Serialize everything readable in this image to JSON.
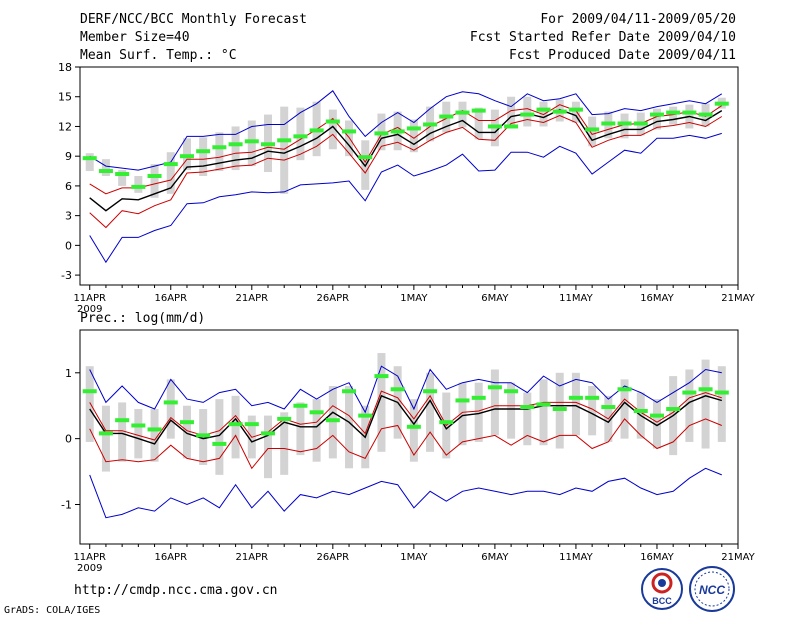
{
  "header": {
    "title": "DERF/NCC/BCC Monthly Forecast",
    "members": "Member Size=40",
    "variable": "Mean Surf. Temp.: °C",
    "period": "For 2009/04/11-2009/05/20",
    "refer": "Fcst Started Refer Date 2009/04/10",
    "produced": "Fcst Produced Date 2009/04/11"
  },
  "second_label": "Prec.: log(mm/d)",
  "footer": {
    "url": "http://cmdp.ncc.cma.gov.cn",
    "credit": "GrADS: COLA/IGES"
  },
  "logos": {
    "bcc": "BCC",
    "ncc": "NCC"
  },
  "colors": {
    "envelope": "#0000cc",
    "spread": "#cc0000",
    "mean": "#000000",
    "obs": "#33ee33",
    "box": "#d3d3d3"
  },
  "chart_data": [
    {
      "type": "line",
      "title": "Mean Surf. Temp.: °C",
      "ylabel": "°C",
      "ylim": [
        -4,
        18
      ],
      "yticks": [
        -3,
        0,
        3,
        6,
        9,
        12,
        15,
        18
      ],
      "x_start": "2009-04-11",
      "x_end": "2009-05-20",
      "xlim": [
        -0.6,
        40
      ],
      "xticks": [
        {
          "day": 0,
          "label": "11APR",
          "year": "2009"
        },
        {
          "day": 5,
          "label": "16APR"
        },
        {
          "day": 10,
          "label": "21APR"
        },
        {
          "day": 15,
          "label": "26APR"
        },
        {
          "day": 20,
          "label": "1MAY"
        },
        {
          "day": 25,
          "label": "6MAY"
        },
        {
          "day": 30,
          "label": "11MAY"
        },
        {
          "day": 35,
          "label": "16MAY"
        },
        {
          "day": 40,
          "label": "21MAY"
        }
      ],
      "series": [
        {
          "name": "max",
          "values": [
            9,
            8,
            7.8,
            7.6,
            8,
            8.4,
            11,
            11,
            11.2,
            11.2,
            12,
            12.2,
            12.2,
            13.4,
            14.3,
            15.6,
            13,
            11,
            12.4,
            13.4,
            12.4,
            13.8,
            15,
            15.5,
            15.3,
            14.6,
            14,
            15.3,
            14.6,
            14.8,
            15.3,
            13.2,
            13.3,
            13.8,
            13.6,
            14,
            14.3,
            14.6,
            14.3,
            15.3
          ]
        },
        {
          "name": "upper",
          "values": [
            6.2,
            5.2,
            5.8,
            5.8,
            6.2,
            6.6,
            8.7,
            8.7,
            8.9,
            9.3,
            9.4,
            9.9,
            9.7,
            10.7,
            11.7,
            12.8,
            10.9,
            8.4,
            11.2,
            11.9,
            10.8,
            12,
            12.8,
            13.6,
            12.6,
            12.6,
            13.6,
            13.8,
            13.2,
            14.2,
            13.6,
            11.2,
            11.7,
            12.2,
            12.3,
            13,
            13.2,
            13.5,
            13,
            14.1
          ]
        },
        {
          "name": "mean",
          "values": [
            4.8,
            3.5,
            4.7,
            4.6,
            5.2,
            5.8,
            7.9,
            8,
            8.3,
            8.6,
            8.8,
            9.5,
            9.3,
            10,
            10.8,
            12,
            10.1,
            8,
            10.8,
            11.2,
            10.2,
            11.3,
            12,
            12.6,
            11.4,
            11.4,
            13,
            13.3,
            12.9,
            13.7,
            13.1,
            10.6,
            11.2,
            11.7,
            11.7,
            12.5,
            12.7,
            13,
            12.6,
            13.6
          ]
        },
        {
          "name": "lower",
          "values": [
            3.3,
            1.8,
            3.5,
            3.2,
            4,
            4.6,
            7.3,
            7.4,
            7.7,
            8,
            8.1,
            8.8,
            8.6,
            9.2,
            10,
            11.2,
            9.3,
            7.3,
            10,
            10.4,
            9.6,
            10.6,
            11.4,
            11.9,
            10.7,
            10.6,
            12.3,
            12.7,
            12.4,
            13.1,
            12.4,
            9.9,
            10.6,
            11.1,
            11.1,
            11.9,
            12.1,
            12.4,
            12,
            13
          ]
        },
        {
          "name": "min",
          "values": [
            1,
            -1.7,
            0.8,
            0.8,
            1.5,
            2,
            4.2,
            4.3,
            4.9,
            5.1,
            5.4,
            5.3,
            5.4,
            6.1,
            6.2,
            6.3,
            6.5,
            4.5,
            7.4,
            8.1,
            7,
            7.5,
            8.1,
            9.2,
            7.5,
            7.6,
            9.4,
            9.4,
            8.9,
            10,
            9.3,
            7.2,
            8.4,
            9.6,
            9.3,
            10.8,
            10.8,
            11.1,
            10.8,
            11.3
          ]
        },
        {
          "name": "observed",
          "values": [
            8.8,
            7.5,
            7.2,
            5.9,
            7,
            8.2,
            9,
            9.5,
            9.9,
            10.2,
            10.5,
            10.2,
            10.6,
            11,
            11.6,
            12.5,
            11.5,
            8.9,
            11.3,
            11.5,
            11.8,
            12.2,
            13,
            13.4,
            13.6,
            12,
            12,
            13.2,
            13.7,
            13.5,
            13.7,
            11.7,
            12.3,
            12.3,
            12.3,
            13.2,
            13.4,
            13.4,
            13.2,
            14.3
          ]
        }
      ],
      "boxes": {
        "low": [
          7.5,
          7,
          6,
          5.3,
          4.8,
          5.2,
          7.6,
          7,
          7.5,
          7.6,
          8,
          7.4,
          5.2,
          8.6,
          9,
          9.7,
          9,
          5.6,
          9.6,
          9.6,
          9.4,
          10.5,
          11.4,
          11.9,
          10.7,
          10,
          11.8,
          12,
          12,
          12.5,
          12.4,
          10,
          10.8,
          10.8,
          11.1,
          11.7,
          12.2,
          11.8,
          12,
          13.8
        ],
        "high": [
          9.3,
          8.7,
          7.6,
          7,
          8.2,
          9.4,
          10.8,
          10.9,
          11.4,
          12,
          12.6,
          13.2,
          14,
          13.9,
          14.5,
          13.7,
          12.6,
          10.6,
          13.3,
          13.5,
          12.7,
          14,
          14.5,
          14.5,
          13.9,
          13.7,
          15,
          15,
          14.5,
          14.7,
          14.5,
          13,
          13.5,
          13.3,
          13.4,
          13.8,
          14,
          14.2,
          14.3,
          14.9
        ]
      }
    },
    {
      "type": "line",
      "title": "Prec.: log(mm/d)",
      "ylabel": "log(mm/d)",
      "ylim": [
        -1.6,
        1.65
      ],
      "yticks": [
        -1,
        0,
        1
      ],
      "x_start": "2009-04-11",
      "x_end": "2009-05-20",
      "xlim": [
        -0.6,
        40
      ],
      "xticks": [
        {
          "day": 0,
          "label": "11APR",
          "year": "2009"
        },
        {
          "day": 5,
          "label": "16APR"
        },
        {
          "day": 10,
          "label": "21APR"
        },
        {
          "day": 15,
          "label": "26APR"
        },
        {
          "day": 20,
          "label": "1MAY"
        },
        {
          "day": 25,
          "label": "6MAY"
        },
        {
          "day": 30,
          "label": "11MAY"
        },
        {
          "day": 35,
          "label": "16MAY"
        },
        {
          "day": 40,
          "label": "21MAY"
        }
      ],
      "series": [
        {
          "name": "max",
          "values": [
            1.05,
            0.55,
            0.8,
            0.55,
            0.45,
            0.9,
            0.6,
            0.55,
            0.7,
            0.75,
            0.5,
            0.55,
            0.45,
            0.75,
            0.6,
            0.75,
            0.85,
            0.4,
            1.1,
            0.95,
            0.45,
            1.05,
            0.75,
            0.85,
            0.9,
            0.85,
            0.85,
            0.7,
            0.95,
            0.8,
            0.9,
            0.85,
            0.6,
            0.8,
            0.7,
            0.55,
            0.7,
            0.85,
            1.05,
            1
          ]
        },
        {
          "name": "upper",
          "values": [
            0.55,
            0.12,
            0.12,
            0.05,
            -0.02,
            0.32,
            0.12,
            0.05,
            0.12,
            0.35,
            0.02,
            0.1,
            0.3,
            0.22,
            0.25,
            0.5,
            0.35,
            0.08,
            0.72,
            0.62,
            0.3,
            0.65,
            0.2,
            0.4,
            0.42,
            0.5,
            0.5,
            0.5,
            0.55,
            0.55,
            0.55,
            0.45,
            0.3,
            0.6,
            0.4,
            0.25,
            0.4,
            0.62,
            0.7,
            0.62
          ]
        },
        {
          "name": "mean",
          "values": [
            0.45,
            0.08,
            0.08,
            0,
            -0.08,
            0.28,
            0.08,
            0,
            0.05,
            0.3,
            -0.05,
            0.05,
            0.25,
            0.18,
            0.18,
            0.4,
            0.25,
            0.02,
            0.65,
            0.55,
            0.22,
            0.58,
            0.15,
            0.35,
            0.38,
            0.45,
            0.45,
            0.45,
            0.5,
            0.5,
            0.5,
            0.38,
            0.25,
            0.55,
            0.35,
            0.2,
            0.35,
            0.55,
            0.65,
            0.58
          ]
        },
        {
          "name": "lower",
          "values": [
            0.15,
            -0.35,
            -0.32,
            -0.35,
            -0.32,
            -0.1,
            -0.3,
            -0.35,
            -0.3,
            0.05,
            -0.45,
            -0.15,
            -0.15,
            -0.2,
            -0.15,
            0.05,
            -0.2,
            -0.3,
            0.15,
            0.2,
            -0.25,
            0.1,
            -0.25,
            -0.05,
            0,
            0.05,
            -0.1,
            0.05,
            -0.05,
            0.05,
            0.05,
            -0.15,
            -0.05,
            0.3,
            0.05,
            -0.15,
            -0.05,
            0.2,
            0.3,
            0.2
          ]
        },
        {
          "name": "min",
          "values": [
            -0.55,
            -1.2,
            -1.15,
            -1.05,
            -1.1,
            -0.9,
            -1,
            -0.9,
            -1.05,
            -0.7,
            -1.05,
            -0.8,
            -1.1,
            -0.85,
            -0.9,
            -0.8,
            -0.85,
            -0.75,
            -0.65,
            -0.7,
            -1.05,
            -0.8,
            -0.95,
            -0.8,
            -0.75,
            -0.8,
            -0.85,
            -0.8,
            -0.8,
            -0.85,
            -0.75,
            -0.8,
            -0.65,
            -0.6,
            -0.75,
            -0.85,
            -0.8,
            -0.6,
            -0.45,
            -0.55
          ]
        },
        {
          "name": "observed",
          "values": [
            0.72,
            0.08,
            0.28,
            0.2,
            0.14,
            0.55,
            0.25,
            0.05,
            -0.08,
            0.22,
            0.22,
            0.08,
            0.3,
            0.5,
            0.4,
            0.28,
            0.72,
            0.35,
            0.95,
            0.75,
            0.18,
            0.72,
            0.25,
            0.58,
            0.62,
            0.78,
            0.72,
            0.48,
            0.52,
            0.45,
            0.62,
            0.62,
            0.48,
            0.75,
            0.42,
            0.35,
            0.45,
            0.7,
            0.75,
            0.7
          ]
        }
      ],
      "boxes": {
        "low": [
          -0.05,
          -0.5,
          -0.35,
          -0.3,
          -0.35,
          0,
          -0.3,
          -0.4,
          -0.55,
          -0.3,
          -0.3,
          -0.6,
          -0.55,
          -0.25,
          -0.35,
          -0.3,
          -0.45,
          -0.45,
          -0.2,
          0,
          -0.35,
          -0.2,
          -0.3,
          -0.1,
          -0.05,
          0.05,
          0,
          -0.1,
          -0.1,
          -0.15,
          0.05,
          0.05,
          -0.05,
          0,
          0,
          -0.15,
          -0.25,
          -0.05,
          -0.15,
          -0.05
        ],
        "high": [
          1.1,
          0.5,
          0.55,
          0.45,
          0.45,
          0.9,
          0.5,
          0.45,
          0.6,
          0.65,
          0.35,
          0.35,
          0.4,
          0.55,
          0.6,
          0.8,
          0.8,
          0.5,
          1.3,
          1.1,
          0.6,
          1,
          0.7,
          0.85,
          0.85,
          1.05,
          0.85,
          0.7,
          0.9,
          1,
          1,
          0.8,
          0.65,
          0.9,
          0.7,
          0.6,
          0.95,
          1.05,
          1.2,
          1.1
        ]
      }
    }
  ]
}
